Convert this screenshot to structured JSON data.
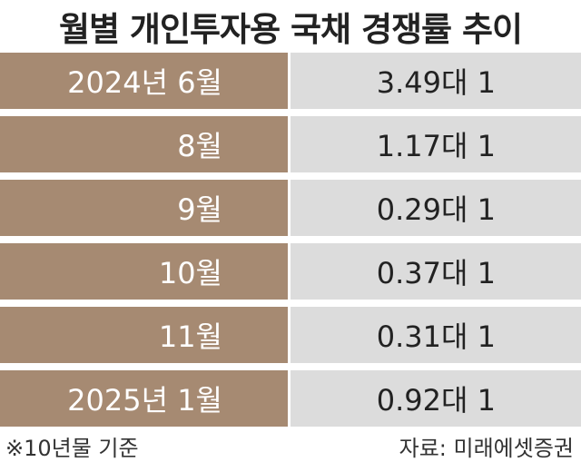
{
  "header": {
    "title": "월별 개인투자용 국채 경쟁률 추이"
  },
  "table": {
    "rows": [
      [
        "2024년 6월",
        "3.49대 1"
      ],
      [
        "8월",
        "1.17대 1"
      ],
      [
        "9월",
        "0.29대 1"
      ],
      [
        "10월",
        "0.37대 1"
      ],
      [
        "11월",
        "0.31대 1"
      ],
      [
        "2025년 1월",
        "0.92대 1"
      ]
    ]
  },
  "footer": {
    "note": "※10년물 기준",
    "source": "자료: 미래에셋증권"
  }
}
